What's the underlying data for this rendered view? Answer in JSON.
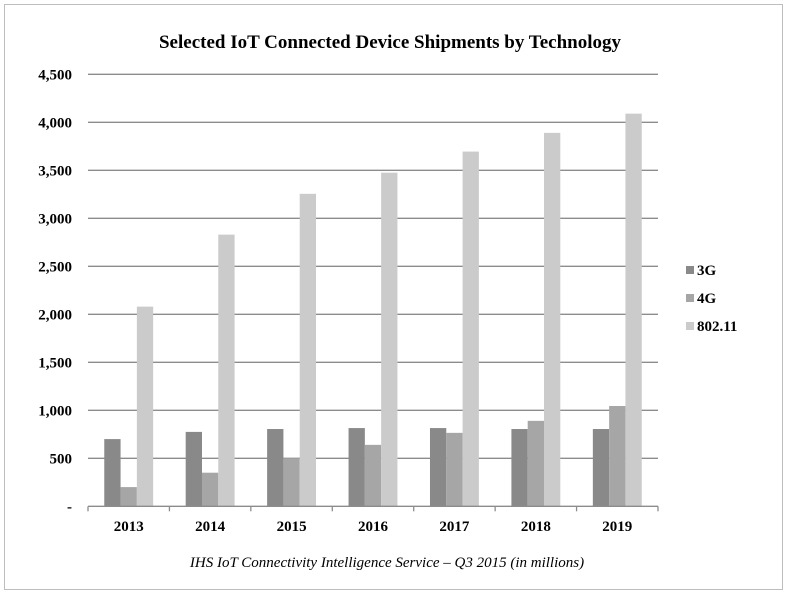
{
  "chart_data": {
    "type": "bar",
    "title": "Selected IoT Connected Device Shipments by Technology",
    "caption": "IHS IoT Connectivity Intelligence Service – Q3 2015 (in millions)",
    "categories": [
      "2013",
      "2014",
      "2015",
      "2016",
      "2017",
      "2018",
      "2019"
    ],
    "series": [
      {
        "name": "3G",
        "color": "#898989",
        "values": [
          700,
          775,
          805,
          815,
          815,
          805,
          805
        ]
      },
      {
        "name": "4G",
        "color": "#a6a6a6",
        "values": [
          200,
          350,
          500,
          640,
          765,
          890,
          1045
        ]
      },
      {
        "name": "802.11",
        "color": "#cbcbcb",
        "values": [
          2080,
          2830,
          3255,
          3475,
          3695,
          3890,
          4090
        ]
      }
    ],
    "ylim": [
      0,
      4500
    ],
    "yticks": [
      0,
      500,
      1000,
      1500,
      2000,
      2500,
      3000,
      3500,
      4000,
      4500
    ],
    "ytick_labels": [
      "-",
      "500",
      "1,000",
      "1,500",
      "2,000",
      "2,500",
      "3,000",
      "3,500",
      "4,000",
      "4,500"
    ],
    "grid": true,
    "legend_position": "right"
  }
}
